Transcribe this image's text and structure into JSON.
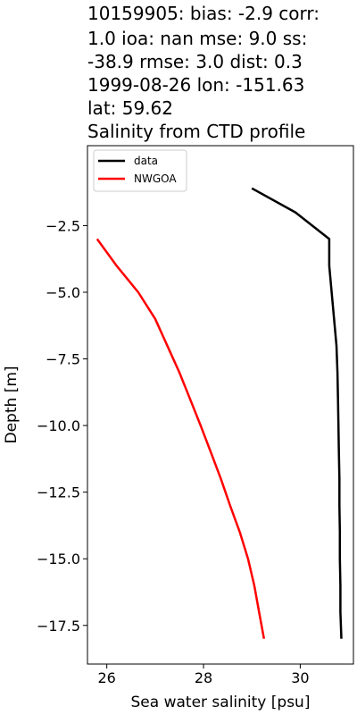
{
  "chart_data": {
    "type": "line",
    "title_lines": [
      "10159905: bias: -2.9  corr:",
      "1.0  ioa: nan  mse: 9.0  ss:",
      "-38.9  rmse: 3.0  dist: 0.3",
      "1999-08-26 lon: -151.63",
      "lat: 59.62",
      "Salinity from CTD profile"
    ],
    "xlabel": "Sea water salinity [psu]",
    "ylabel": "Depth [m]",
    "xlim": [
      25.6,
      31.1
    ],
    "ylim": [
      -18.95,
      0.5
    ],
    "xticks": [
      26,
      28,
      30
    ],
    "xtick_labels": [
      "26",
      "28",
      "30"
    ],
    "yticks": [
      -2.5,
      -5.0,
      -7.5,
      -10.0,
      -12.5,
      -15.0,
      -17.5
    ],
    "ytick_labels": [
      "−2.5",
      "−5.0",
      "−7.5",
      "−10.0",
      "−12.5",
      "−15.0",
      "−17.5"
    ],
    "legend_position": "upper-left",
    "series": [
      {
        "name": "data",
        "color": "#000000",
        "points": [
          [
            29.0,
            -1.1
          ],
          [
            29.9,
            -2.0
          ],
          [
            30.6,
            -3.0
          ],
          [
            30.6,
            -4.0
          ],
          [
            30.65,
            -5.0
          ],
          [
            30.7,
            -6.0
          ],
          [
            30.75,
            -7.0
          ],
          [
            30.77,
            -8.0
          ],
          [
            30.78,
            -9.0
          ],
          [
            30.79,
            -10.0
          ],
          [
            30.8,
            -11.0
          ],
          [
            30.81,
            -12.0
          ],
          [
            30.81,
            -13.0
          ],
          [
            30.82,
            -14.0
          ],
          [
            30.82,
            -15.0
          ],
          [
            30.83,
            -16.0
          ],
          [
            30.83,
            -17.0
          ],
          [
            30.85,
            -18.0
          ]
        ]
      },
      {
        "name": "NWGOA",
        "color": "#ff0000",
        "points": [
          [
            25.8,
            -3.0
          ],
          [
            26.2,
            -4.0
          ],
          [
            26.65,
            -5.0
          ],
          [
            27.0,
            -6.0
          ],
          [
            27.25,
            -7.0
          ],
          [
            27.5,
            -8.0
          ],
          [
            27.72,
            -9.0
          ],
          [
            27.94,
            -10.0
          ],
          [
            28.15,
            -11.0
          ],
          [
            28.36,
            -12.0
          ],
          [
            28.55,
            -13.0
          ],
          [
            28.75,
            -14.0
          ],
          [
            28.92,
            -15.0
          ],
          [
            29.05,
            -16.0
          ],
          [
            29.15,
            -17.0
          ],
          [
            29.25,
            -18.0
          ]
        ]
      }
    ]
  }
}
